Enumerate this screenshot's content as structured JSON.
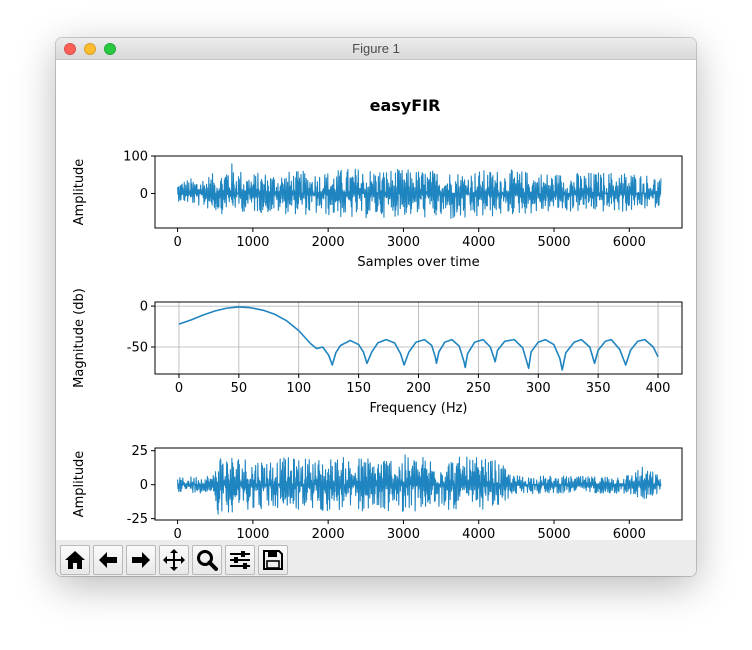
{
  "window": {
    "title": "Figure 1",
    "controls": [
      {
        "name": "close",
        "color": "#fe5f57"
      },
      {
        "name": "minimize",
        "color": "#febc2e"
      },
      {
        "name": "maximize",
        "color": "#28c840"
      }
    ]
  },
  "figure": {
    "suptitle": "easyFIR",
    "line_color": "#1f85c0",
    "grid_color": "#b0b0b0"
  },
  "chart_data": [
    {
      "type": "line",
      "title": "",
      "xlabel": "Samples over time",
      "ylabel": "Amplitude",
      "xlim": [
        -300,
        6700
      ],
      "ylim": [
        -92,
        100
      ],
      "xticks": [
        0,
        1000,
        2000,
        3000,
        4000,
        5000,
        6000
      ],
      "yticks": [
        0,
        100
      ],
      "grid": false,
      "series": [
        {
          "envelope": [
            {
              "x": 0,
              "min": -20,
              "max": 35
            },
            {
              "x": 300,
              "min": -35,
              "max": 45
            },
            {
              "x": 600,
              "min": -55,
              "max": 60
            },
            {
              "x": 650,
              "min": -40,
              "max": 95
            },
            {
              "x": 900,
              "min": -50,
              "max": 55
            },
            {
              "x": 1500,
              "min": -55,
              "max": 60
            },
            {
              "x": 2000,
              "min": -60,
              "max": 60
            },
            {
              "x": 2300,
              "min": -70,
              "max": 70
            },
            {
              "x": 3000,
              "min": -60,
              "max": 65
            },
            {
              "x": 3800,
              "min": -78,
              "max": 60
            },
            {
              "x": 4300,
              "min": -60,
              "max": 65
            },
            {
              "x": 5000,
              "min": -50,
              "max": 55
            },
            {
              "x": 6000,
              "min": -50,
              "max": 60
            },
            {
              "x": 6420,
              "min": -35,
              "max": 45
            }
          ]
        }
      ]
    },
    {
      "type": "line",
      "title": "",
      "xlabel": "Frequency (Hz)",
      "ylabel": "Magnitude (db)",
      "xlim": [
        -20,
        420
      ],
      "ylim": [
        -83,
        5
      ],
      "xticks": [
        0,
        50,
        100,
        150,
        200,
        250,
        300,
        350,
        400
      ],
      "yticks": [
        -50,
        0
      ],
      "grid": true,
      "series": [
        {
          "points": [
            [
              0,
              -22
            ],
            [
              10,
              -17
            ],
            [
              20,
              -11
            ],
            [
              30,
              -6
            ],
            [
              40,
              -2.5
            ],
            [
              50,
              -1
            ],
            [
              60,
              -2
            ],
            [
              70,
              -5
            ],
            [
              80,
              -10
            ],
            [
              90,
              -18
            ],
            [
              100,
              -30
            ],
            [
              110,
              -46
            ],
            [
              115,
              -52
            ],
            [
              120,
              -50
            ],
            [
              125,
              -60
            ],
            [
              128,
              -72
            ],
            [
              131,
              -57
            ],
            [
              135,
              -48
            ],
            [
              143,
              -42
            ],
            [
              150,
              -47
            ],
            [
              154,
              -56
            ],
            [
              157,
              -70
            ],
            [
              161,
              -56
            ],
            [
              166,
              -45
            ],
            [
              173,
              -41
            ],
            [
              180,
              -45
            ],
            [
              185,
              -58
            ],
            [
              188,
              -72
            ],
            [
              192,
              -56
            ],
            [
              198,
              -44
            ],
            [
              205,
              -41
            ],
            [
              211,
              -48
            ],
            [
              214,
              -62
            ],
            [
              215,
              -70
            ],
            [
              217,
              -56
            ],
            [
              222,
              -44
            ],
            [
              228,
              -41
            ],
            [
              234,
              -49
            ],
            [
              238,
              -68
            ],
            [
              239,
              -75
            ],
            [
              241,
              -58
            ],
            [
              247,
              -44
            ],
            [
              254,
              -41
            ],
            [
              260,
              -50
            ],
            [
              264,
              -68
            ],
            [
              266,
              -54
            ],
            [
              272,
              -43
            ],
            [
              280,
              -41
            ],
            [
              287,
              -51
            ],
            [
              292,
              -76
            ],
            [
              294,
              -56
            ],
            [
              300,
              -44
            ],
            [
              306,
              -41
            ],
            [
              313,
              -47
            ],
            [
              318,
              -64
            ],
            [
              320,
              -78
            ],
            [
              323,
              -57
            ],
            [
              330,
              -44
            ],
            [
              336,
              -41
            ],
            [
              343,
              -50
            ],
            [
              347,
              -70
            ],
            [
              350,
              -54
            ],
            [
              356,
              -43
            ],
            [
              361,
              -41
            ],
            [
              368,
              -53
            ],
            [
              373,
              -72
            ],
            [
              377,
              -54
            ],
            [
              383,
              -43
            ],
            [
              389,
              -41
            ],
            [
              396,
              -50
            ],
            [
              400,
              -62
            ]
          ]
        }
      ]
    },
    {
      "type": "line",
      "title": "",
      "xlabel": "Samples over time",
      "ylabel": "Amplitude",
      "xlim": [
        -300,
        6700
      ],
      "ylim": [
        -26,
        27
      ],
      "xticks": [
        0,
        1000,
        2000,
        3000,
        4000,
        5000,
        6000
      ],
      "yticks": [
        -25,
        0,
        25
      ],
      "grid": false,
      "series": [
        {
          "envelope": [
            {
              "x": 0,
              "min": -5,
              "max": 5
            },
            {
              "x": 490,
              "min": -7,
              "max": 8
            },
            {
              "x": 520,
              "min": -22,
              "max": 25
            },
            {
              "x": 1000,
              "min": -18,
              "max": 20
            },
            {
              "x": 2000,
              "min": -20,
              "max": 20
            },
            {
              "x": 3000,
              "min": -20,
              "max": 22
            },
            {
              "x": 4000,
              "min": -18,
              "max": 20
            },
            {
              "x": 4250,
              "min": -20,
              "max": 18
            },
            {
              "x": 4450,
              "min": -7,
              "max": 7
            },
            {
              "x": 5500,
              "min": -6,
              "max": 6
            },
            {
              "x": 6000,
              "min": -7,
              "max": 8
            },
            {
              "x": 6150,
              "min": -12,
              "max": 14
            },
            {
              "x": 6420,
              "min": -6,
              "max": 7
            }
          ]
        }
      ]
    }
  ],
  "toolbar": {
    "tools": [
      {
        "name": "home",
        "icon": "home-icon"
      },
      {
        "name": "back",
        "icon": "arrow-left-icon"
      },
      {
        "name": "forward",
        "icon": "arrow-right-icon"
      },
      {
        "name": "pan",
        "icon": "move-icon"
      },
      {
        "name": "zoom",
        "icon": "magnifier-icon"
      },
      {
        "name": "configure-subplots",
        "icon": "sliders-icon"
      },
      {
        "name": "save",
        "icon": "floppy-disk-icon"
      }
    ]
  }
}
